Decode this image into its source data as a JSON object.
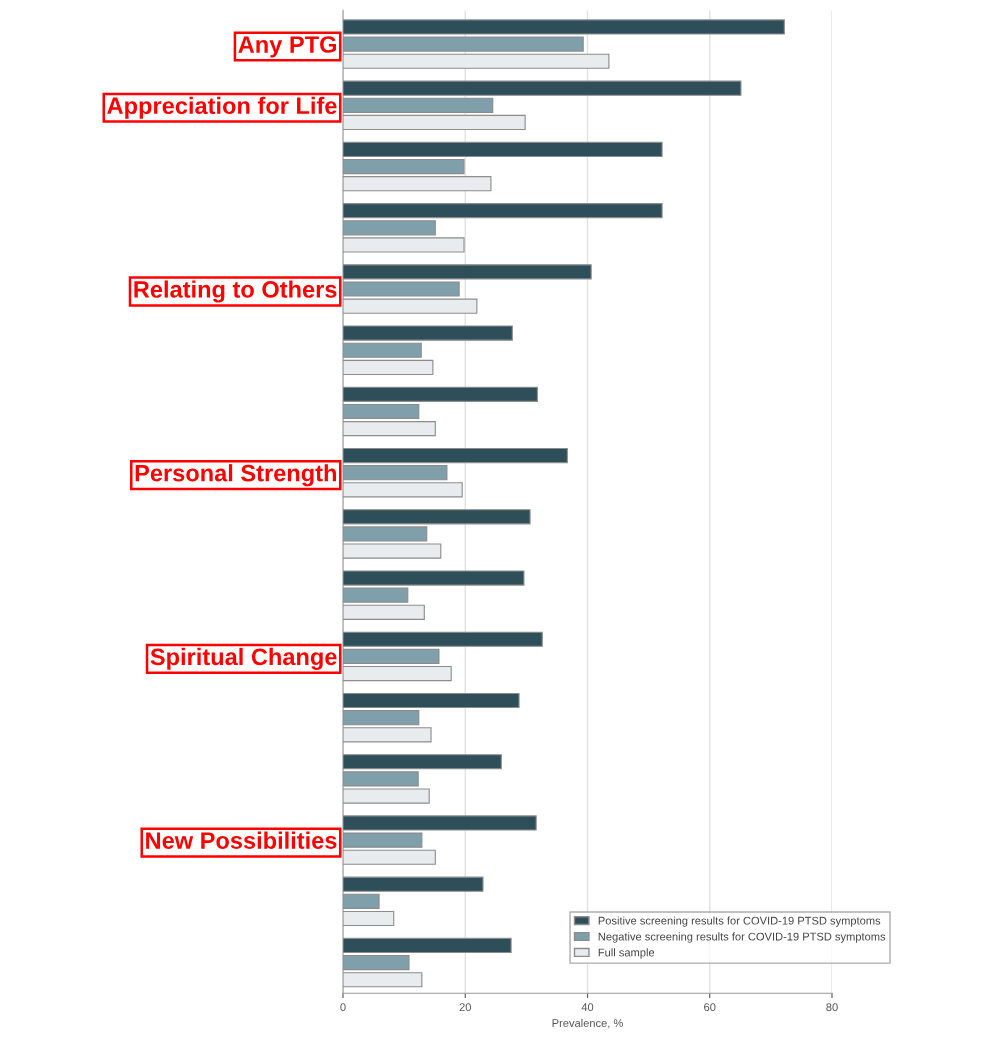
{
  "chart_data": {
    "type": "bar",
    "orientation": "horizontal",
    "xlabel": "Prevalence, %",
    "categories": [
      "Any PTG",
      "Appreciation for Life",
      null,
      null,
      "Relating to Others",
      null,
      null,
      "Personal Strength",
      null,
      null,
      "Spiritual Change",
      null,
      null,
      "New Possibilities",
      null,
      null
    ],
    "series": [
      {
        "name": "Positive screening results for COVID-19 PTSD symptoms",
        "color": "#2e4f5a",
        "values": [
          72.2,
          65.1,
          52.2,
          52.2,
          40.6,
          27.7,
          31.8,
          36.7,
          30.6,
          29.6,
          32.6,
          28.8,
          25.9,
          31.6,
          22.9,
          27.5
        ]
      },
      {
        "name": "Negative screening results for COVID-19 PTSD symptoms",
        "color": "#7f9faa",
        "values": [
          39.3,
          24.5,
          19.8,
          15.1,
          19.0,
          12.8,
          12.4,
          17.0,
          13.7,
          10.6,
          15.7,
          12.4,
          12.3,
          12.9,
          5.9,
          10.8
        ]
      },
      {
        "name": "Full sample",
        "color": "#e8ecee",
        "values": [
          43.5,
          29.8,
          24.2,
          19.8,
          21.9,
          14.7,
          15.1,
          19.5,
          16.0,
          13.3,
          17.7,
          14.4,
          14.1,
          15.1,
          8.3,
          12.9
        ]
      }
    ],
    "xlim": [
      0,
      80
    ],
    "xticks": [
      0,
      20,
      40,
      60,
      80
    ],
    "grid": "x",
    "legend": "bottom right"
  }
}
